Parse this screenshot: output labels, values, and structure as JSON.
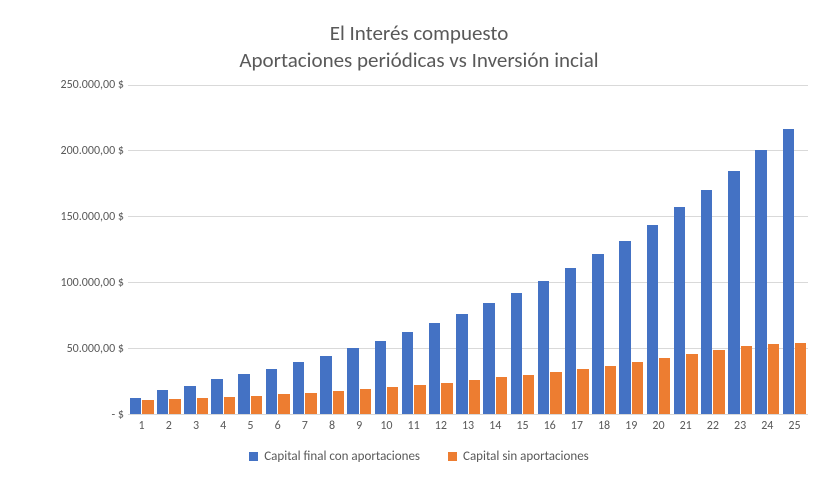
{
  "chart": {
    "type": "bar",
    "title_line1": "El Interés compuesto",
    "title_line2": "Aportaciones periódicas vs Inversión incial",
    "title_fontsize": 21,
    "title_color": "#595959",
    "background_color": "#ffffff",
    "grid_color": "#d9d9d9",
    "axis_label_color": "#595959",
    "axis_label_fontsize": 12,
    "categories": [
      "1",
      "2",
      "3",
      "4",
      "5",
      "6",
      "7",
      "8",
      "9",
      "10",
      "11",
      "12",
      "13",
      "14",
      "15",
      "16",
      "17",
      "18",
      "19",
      "20",
      "21",
      "22",
      "23",
      "24",
      "25"
    ],
    "series": [
      {
        "name": "Capital final con aportaciones",
        "color": "#4472c4",
        "values": [
          12000,
          18000,
          21000,
          26000,
          30000,
          34000,
          39000,
          44000,
          50000,
          55000,
          62000,
          69000,
          76000,
          84000,
          92000,
          101000,
          111000,
          121000,
          131000,
          143000,
          157000,
          170000,
          184000,
          200000,
          216000
        ]
      },
      {
        "name": "Capital sin aportaciones",
        "color": "#ed7d31",
        "values": [
          10000,
          10800,
          11600,
          12600,
          13600,
          14700,
          15900,
          17200,
          18600,
          20100,
          22000,
          23500,
          25400,
          27500,
          29500,
          31600,
          34000,
          36000,
          39000,
          42000,
          45000,
          48000,
          51000,
          53000,
          54000
        ]
      }
    ],
    "ylim": [
      0,
      250000
    ],
    "ytick_step": 50000,
    "ytick_labels": [
      "-   $",
      "50.000,00 $",
      "100.000,00 $",
      "150.000,00 $",
      "200.000,00 $",
      "250.000,00 $"
    ],
    "bar_group_width_ratio": 0.85,
    "legend_position": "bottom",
    "legend_fontsize": 13
  }
}
